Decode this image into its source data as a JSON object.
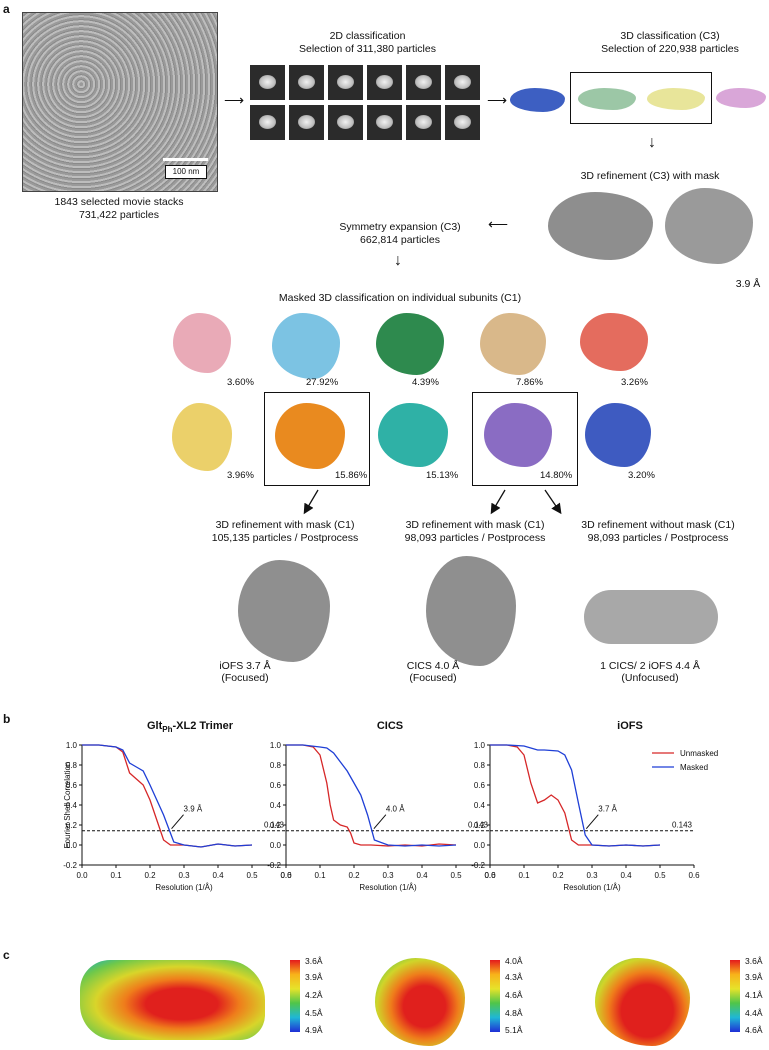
{
  "panels": {
    "a": "a",
    "b": "b",
    "c": "c"
  },
  "micrograph": {
    "scale": "100 nm",
    "caption1": "1843 selected movie stacks",
    "caption2": "731,422 particles"
  },
  "class2d": {
    "title": "2D classification",
    "subtitle": "Selection of 311,380 particles"
  },
  "class3d": {
    "title": "3D classification (C3)",
    "subtitle": "Selection of 220,938 particles"
  },
  "refine3d": {
    "title": "3D refinement (C3) with mask",
    "resolution": "3.9 Å"
  },
  "symexp": {
    "title": "Symmetry expansion (C3)",
    "subtitle": "662,814 particles"
  },
  "masked": {
    "title": "Masked 3D classification on individual subunits (C1)"
  },
  "classes": [
    {
      "pct": "3.60%",
      "color": "#e9aab7"
    },
    {
      "pct": "27.92%",
      "color": "#7cc3e3"
    },
    {
      "pct": "4.39%",
      "color": "#2e8a4e"
    },
    {
      "pct": "7.86%",
      "color": "#d9b88a"
    },
    {
      "pct": "3.26%",
      "color": "#e46c5e"
    },
    {
      "pct": "3.96%",
      "color": "#ebd06a"
    },
    {
      "pct": "15.86%",
      "color": "#e98a1f"
    },
    {
      "pct": "15.13%",
      "color": "#2fb1a6"
    },
    {
      "pct": "14.80%",
      "color": "#8a6cc3"
    },
    {
      "pct": "3.20%",
      "color": "#3e5bc1"
    }
  ],
  "ref1": {
    "title": "3D refinement with mask (C1)",
    "subtitle": "105,135 particles / Postprocess",
    "result": "iOFS  3.7 Å",
    "note": "(Focused)"
  },
  "ref2": {
    "title": "3D refinement with mask (C1)",
    "subtitle": "98,093 particles / Postprocess",
    "result": "CICS  4.0 Å",
    "note": "(Focused)"
  },
  "ref3": {
    "title": "3D refinement without mask (C1)",
    "subtitle": "98,093 particles / Postprocess",
    "result": "1 CICS/ 2 iOFS  4.4 Å",
    "note": "(Unfocused)"
  },
  "fsc_axes": {
    "ylabel": "Fourier Shell Correlation",
    "xlabel": "Resolution (1/Å)",
    "threshold": "0.143",
    "xticks": [
      "0.0",
      "0.1",
      "0.2",
      "0.3",
      "0.4",
      "0.5",
      "0.6"
    ],
    "yticks": [
      "1.0",
      "0.8",
      "0.6",
      "0.4",
      "0.2",
      "0.0",
      "-0.2"
    ]
  },
  "legend": {
    "unmasked": "Unmasked",
    "masked": "Masked",
    "unmasked_color": "#d62728",
    "masked_color": "#1f3fd6"
  },
  "chart_data": [
    {
      "type": "line",
      "title_main": "Glt",
      "title_sub": "Ph",
      "title_rest": "-XL2 Trimer",
      "annotation": "3.9 Å",
      "xlim": [
        0,
        0.6
      ],
      "ylim": [
        -0.2,
        1.0
      ],
      "threshold": 0.143,
      "series": [
        {
          "name": "Unmasked",
          "x": [
            0,
            0.05,
            0.1,
            0.12,
            0.14,
            0.16,
            0.18,
            0.2,
            0.22,
            0.24,
            0.26,
            0.3,
            0.35,
            0.4,
            0.45,
            0.5
          ],
          "y": [
            1.0,
            1.0,
            0.98,
            0.93,
            0.72,
            0.66,
            0.6,
            0.45,
            0.25,
            0.05,
            0.0,
            0.0,
            -0.02,
            0.01,
            -0.01,
            0.0
          ]
        },
        {
          "name": "Masked",
          "x": [
            0,
            0.05,
            0.1,
            0.12,
            0.14,
            0.16,
            0.18,
            0.2,
            0.22,
            0.24,
            0.26,
            0.27,
            0.3,
            0.35,
            0.4,
            0.45,
            0.5
          ],
          "y": [
            1.0,
            1.0,
            0.98,
            0.95,
            0.82,
            0.78,
            0.74,
            0.6,
            0.45,
            0.3,
            0.12,
            0.03,
            0.0,
            -0.02,
            0.01,
            -0.01,
            0.0
          ]
        }
      ]
    },
    {
      "type": "line",
      "title_main": "CICS",
      "annotation": "4.0 Å",
      "xlim": [
        0,
        0.6
      ],
      "ylim": [
        -0.2,
        1.0
      ],
      "threshold": 0.143,
      "series": [
        {
          "name": "Unmasked",
          "x": [
            0,
            0.05,
            0.08,
            0.1,
            0.12,
            0.13,
            0.14,
            0.16,
            0.18,
            0.19,
            0.2,
            0.22,
            0.25,
            0.3,
            0.35,
            0.4,
            0.45,
            0.5
          ],
          "y": [
            1.0,
            1.0,
            0.98,
            0.9,
            0.62,
            0.4,
            0.25,
            0.2,
            0.18,
            0.12,
            0.02,
            0.0,
            0.0,
            -0.01,
            0.0,
            -0.01,
            0.01,
            0.0
          ]
        },
        {
          "name": "Masked",
          "x": [
            0,
            0.05,
            0.1,
            0.12,
            0.14,
            0.16,
            0.18,
            0.2,
            0.22,
            0.24,
            0.26,
            0.3,
            0.35,
            0.4,
            0.45,
            0.5
          ],
          "y": [
            1.0,
            1.0,
            0.98,
            0.97,
            0.92,
            0.83,
            0.74,
            0.62,
            0.5,
            0.3,
            0.05,
            0.0,
            -0.01,
            0.0,
            -0.01,
            0.0
          ]
        }
      ]
    },
    {
      "type": "line",
      "title_main": "iOFS",
      "annotation": "3.7 Å",
      "xlim": [
        0,
        0.6
      ],
      "ylim": [
        -0.2,
        1.0
      ],
      "threshold": 0.143,
      "series": [
        {
          "name": "Unmasked",
          "x": [
            0,
            0.05,
            0.08,
            0.1,
            0.12,
            0.14,
            0.16,
            0.18,
            0.2,
            0.22,
            0.24,
            0.26,
            0.3,
            0.35,
            0.4,
            0.45,
            0.5
          ],
          "y": [
            1.0,
            1.0,
            0.98,
            0.9,
            0.62,
            0.42,
            0.45,
            0.5,
            0.45,
            0.32,
            0.05,
            0.0,
            0.0,
            -0.01,
            0.0,
            -0.01,
            0.0
          ]
        },
        {
          "name": "Masked",
          "x": [
            0,
            0.05,
            0.1,
            0.12,
            0.14,
            0.16,
            0.2,
            0.22,
            0.24,
            0.26,
            0.28,
            0.3,
            0.35,
            0.4,
            0.45,
            0.5
          ],
          "y": [
            1.0,
            1.0,
            0.99,
            0.97,
            0.95,
            0.95,
            0.94,
            0.9,
            0.75,
            0.42,
            0.1,
            0.0,
            -0.01,
            0.0,
            -0.01,
            0.0
          ]
        }
      ]
    }
  ],
  "colorbars": [
    {
      "labels": [
        "3.6Å",
        "3.9Å",
        "4.2Å",
        "4.5Å",
        "4.9Å"
      ]
    },
    {
      "labels": [
        "4.0Å",
        "4.3Å",
        "4.6Å",
        "4.8Å",
        "5.1Å"
      ]
    },
    {
      "labels": [
        "3.6Å",
        "3.9Å",
        "4.1Å",
        "4.4Å",
        "4.6Å"
      ]
    }
  ]
}
